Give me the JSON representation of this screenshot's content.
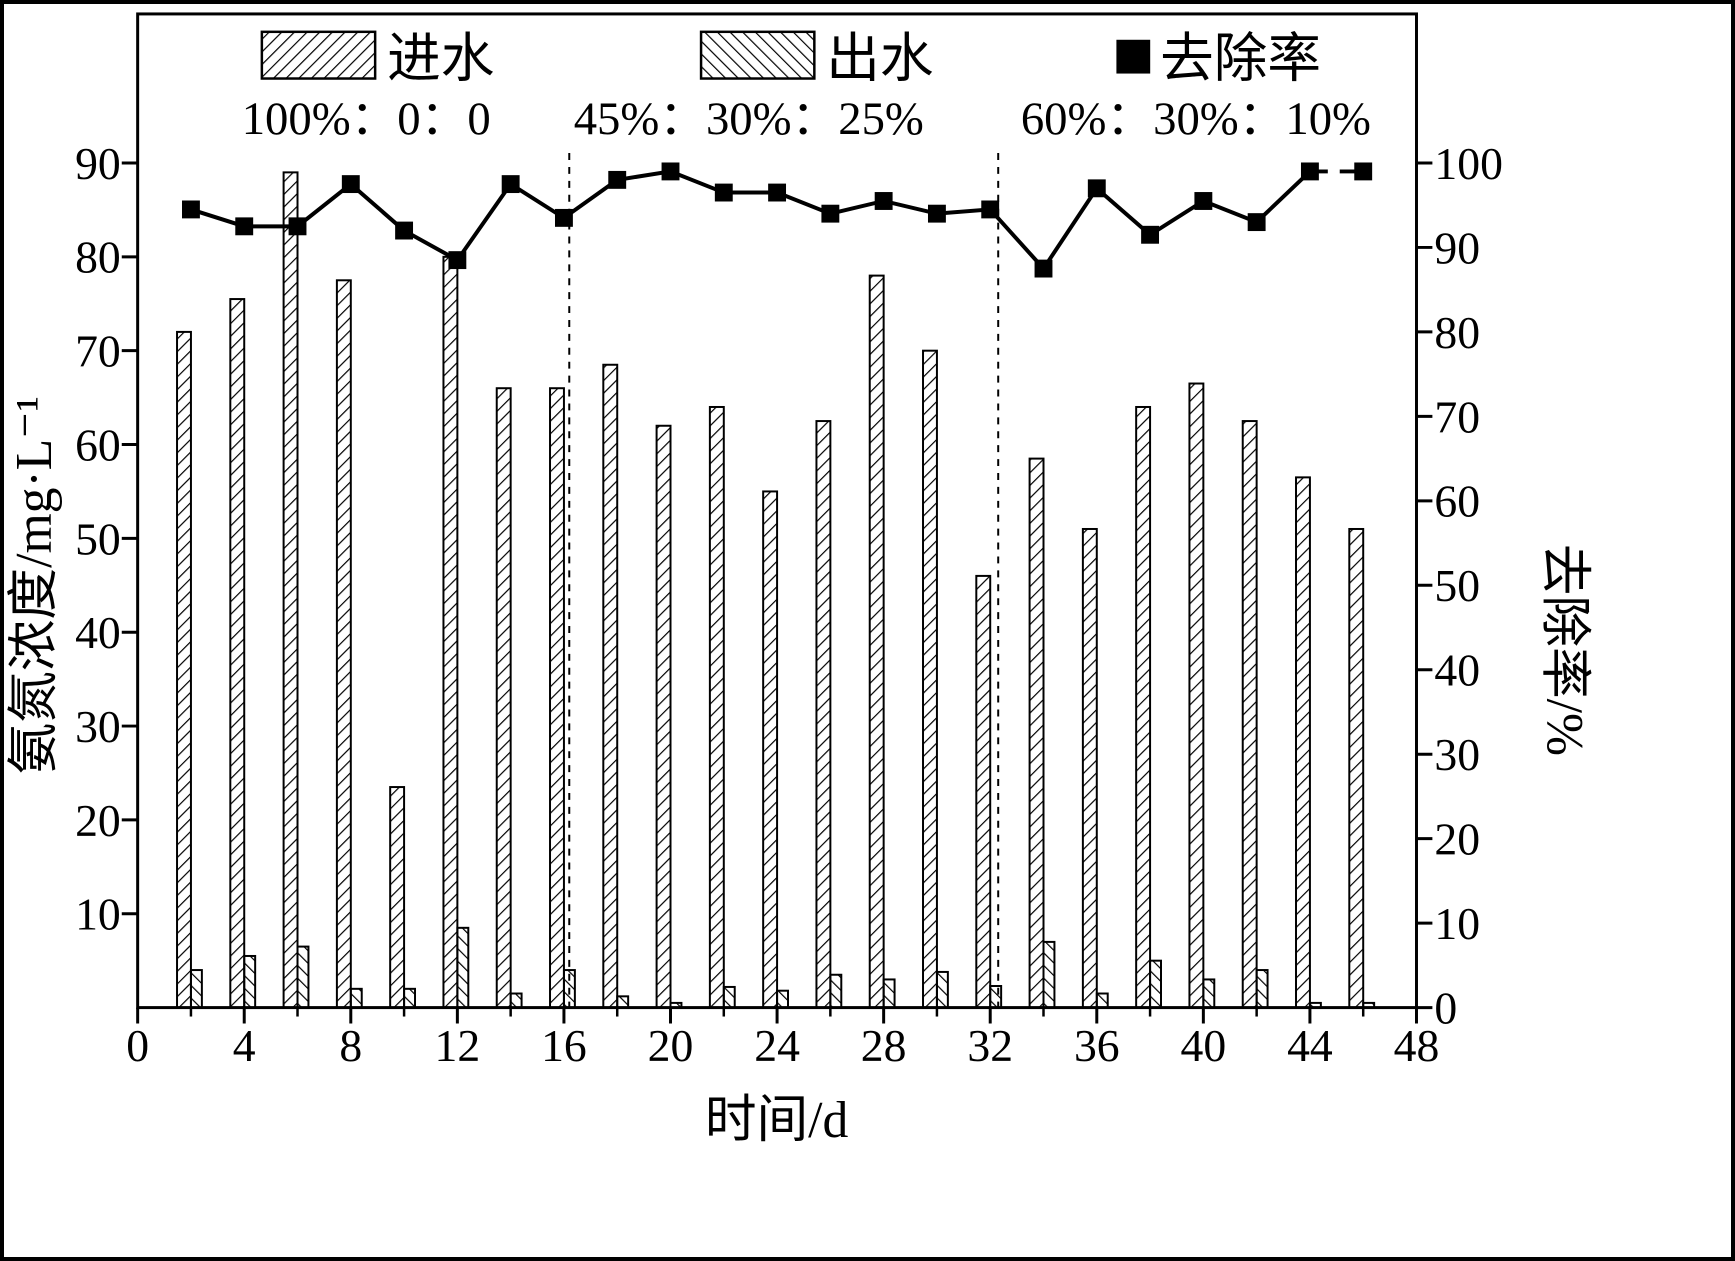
{
  "figure": {
    "legend": [
      {
        "label": "进水",
        "swatch": "hatch-forward-icon"
      },
      {
        "label": "出水",
        "swatch": "hatch-back-icon"
      },
      {
        "label": "去除率",
        "swatch": "black-square-icon"
      }
    ],
    "phases": [
      {
        "label": "100%：0：0"
      },
      {
        "label": "45%：30%：25%"
      },
      {
        "label": "60%：30%：10%"
      }
    ],
    "x_axis": {
      "label": "时间/d",
      "ticks": [
        "0",
        "4",
        "8",
        "12",
        "16",
        "20",
        "24",
        "28",
        "32",
        "36",
        "40",
        "44",
        "48"
      ]
    },
    "y_left": {
      "label": "氨氮浓度/mg·L⁻¹",
      "ticks": [
        "10",
        "20",
        "30",
        "40",
        "50",
        "60",
        "70",
        "80",
        "90"
      ]
    },
    "y_right": {
      "label": "去除率/%",
      "ticks": [
        "0",
        "10",
        "20",
        "30",
        "40",
        "50",
        "60",
        "70",
        "80",
        "90",
        "100"
      ]
    }
  },
  "chart_data": {
    "type": "bar",
    "note": "bars on left axis (mg/L), line with square markers on right axis (%)",
    "x": [
      2,
      4,
      6,
      8,
      10,
      12,
      14,
      16,
      18,
      20,
      22,
      24,
      26,
      28,
      30,
      32,
      34,
      36,
      38,
      40,
      42,
      44,
      46
    ],
    "series": [
      {
        "name": "进水",
        "type": "bar",
        "axis": "left",
        "values": [
          72,
          75.5,
          89,
          77.5,
          23.5,
          80,
          66,
          66,
          68.5,
          62,
          64,
          55,
          62.5,
          78,
          70,
          46,
          58.5,
          51,
          64,
          66.5,
          62.5,
          56.5,
          51
        ]
      },
      {
        "name": "出水",
        "type": "bar",
        "axis": "left",
        "values": [
          4,
          5.5,
          6.5,
          2,
          2,
          8.5,
          1.5,
          4,
          1.2,
          0.5,
          2.2,
          1.8,
          3.5,
          3,
          3.8,
          2.3,
          7,
          1.5,
          5,
          3,
          4,
          0.5,
          0.5
        ]
      },
      {
        "name": "去除率",
        "type": "line",
        "axis": "right",
        "values": [
          94.5,
          92.5,
          92.5,
          97.5,
          92,
          88.5,
          97.5,
          93.5,
          98,
          99,
          96.5,
          96.5,
          94,
          95.5,
          94,
          94.5,
          87.5,
          97,
          91.5,
          95.5,
          93,
          99,
          99
        ]
      }
    ],
    "phase_dividers_x": [
      16.2,
      32.3
    ],
    "xlabel": "时间/d",
    "ylabel_left": "氨氮浓度/mg·L⁻¹",
    "ylabel_right": "去除率/%",
    "xlim": [
      0,
      48
    ],
    "ylim_left": [
      0,
      90
    ],
    "ylim_right": [
      0,
      100
    ],
    "grid": "off",
    "legend_position": "top-inside",
    "colors": {
      "bars": "#000000",
      "line": "#000000",
      "background": "#ffffff"
    }
  }
}
